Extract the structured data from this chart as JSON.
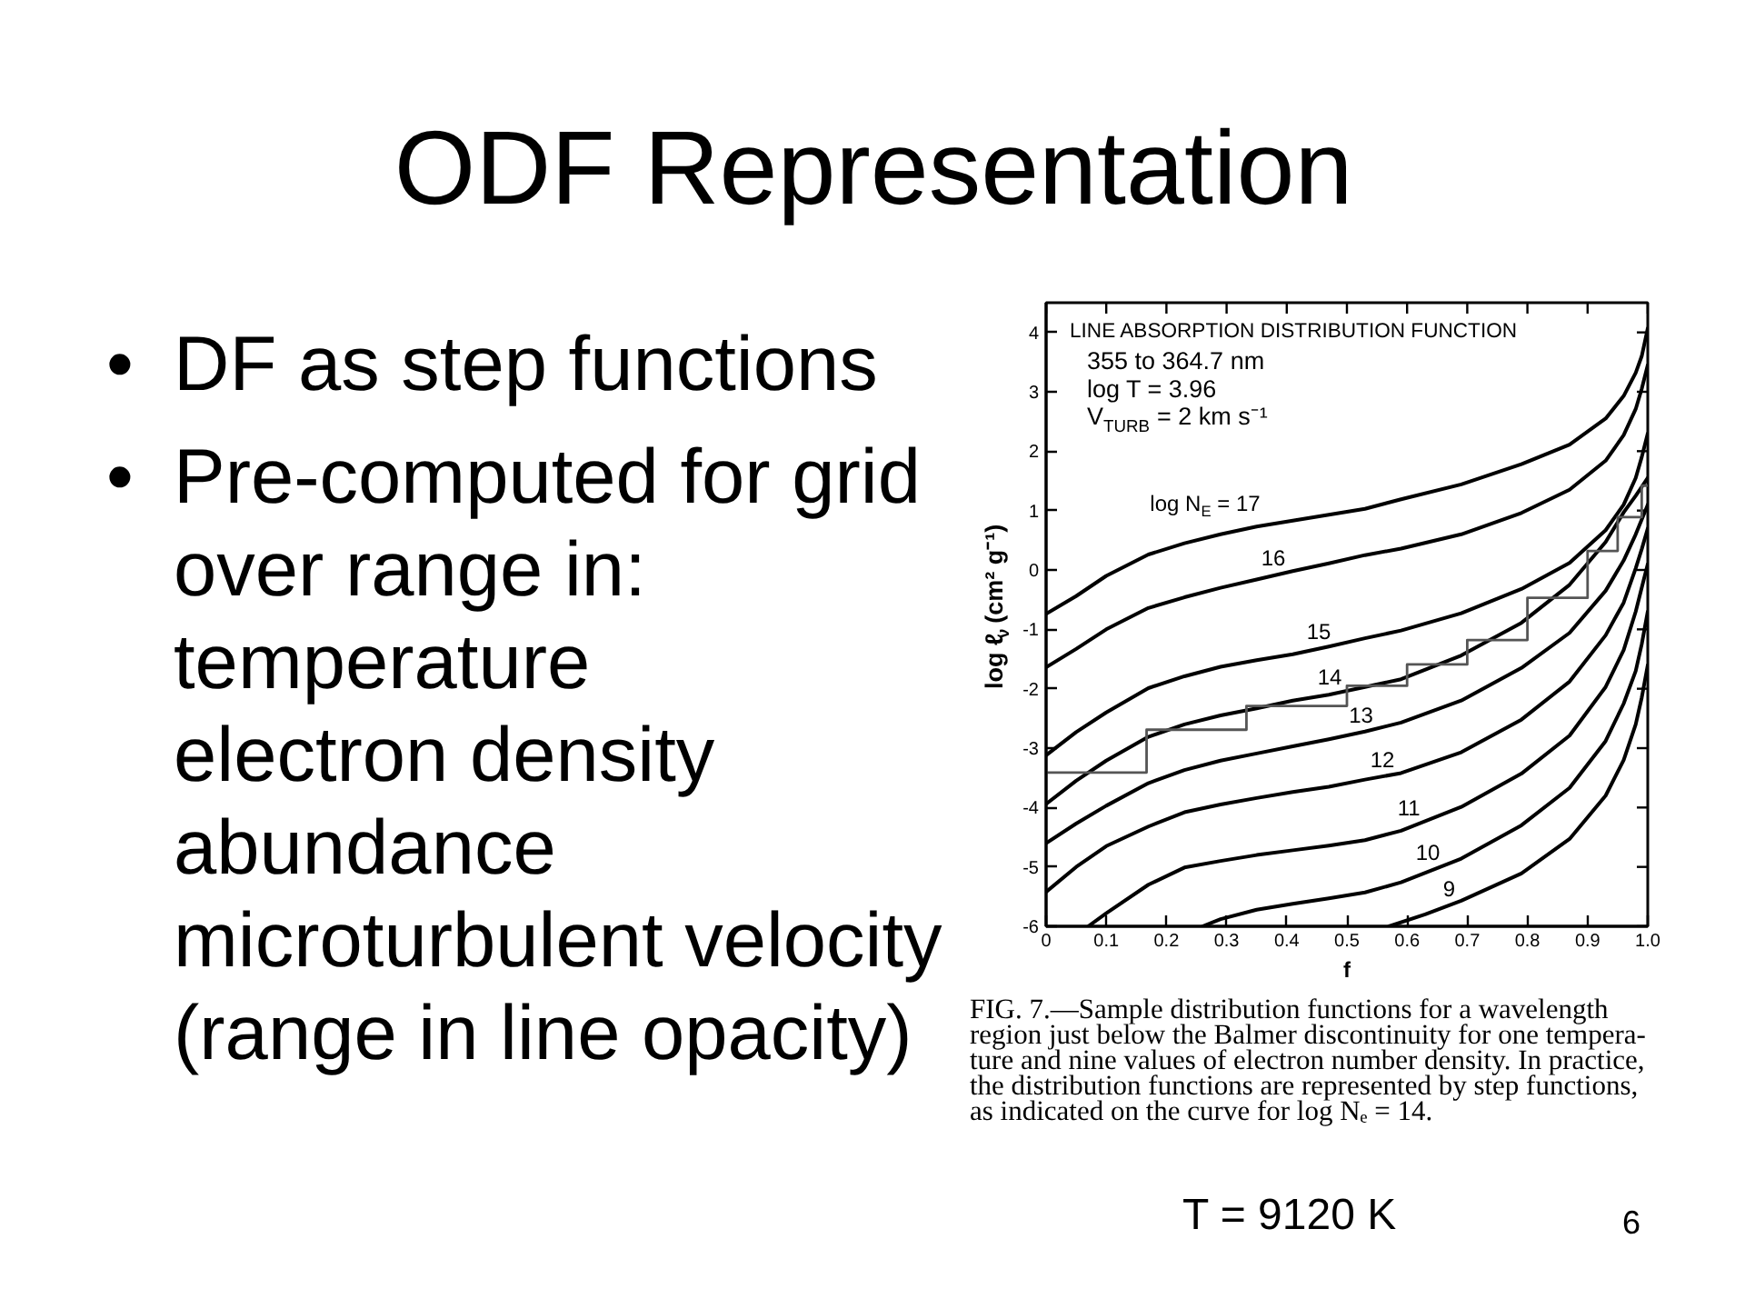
{
  "chart_data": {
    "type": "line",
    "title": "ODF Representation",
    "subtitle": "LINE ABSORPTION DISTRIBUTION FUNCTION",
    "xlabel": "f",
    "ylabel": "log ℓ$_{ν}$ (cm² g⁻¹)",
    "xlim": [
      0,
      1
    ],
    "ylim": [
      -6,
      4.5
    ],
    "xticks": [
      0,
      0.1,
      0.2,
      0.3,
      0.4,
      0.5,
      0.6,
      0.7,
      0.8,
      0.9,
      {
        "value": 1,
        "label": "1.0"
      }
    ],
    "yticks": [
      -6,
      -5,
      -4,
      -3,
      -2,
      -1,
      0,
      1,
      2,
      3,
      4
    ],
    "series": [
      {
        "name": "log N$_{E}$ = 17",
        "color": "#000000",
        "x": [
          0,
          0.05,
          0.1,
          0.17,
          0.23,
          0.29,
          0.35,
          0.41,
          0.47,
          0.53,
          0.59,
          0.69,
          0.79,
          0.87,
          0.93,
          0.96,
          0.98,
          0.99,
          1.0
        ],
        "values": [
          -0.74,
          -0.44,
          -0.1,
          0.26,
          0.45,
          0.6,
          0.73,
          0.83,
          0.93,
          1.03,
          1.19,
          1.44,
          1.78,
          2.11,
          2.55,
          2.93,
          3.32,
          3.6,
          4.07
        ]
      },
      {
        "name": "16",
        "color": "#000000",
        "x": [
          0,
          0.05,
          0.1,
          0.17,
          0.23,
          0.29,
          0.35,
          0.41,
          0.47,
          0.53,
          0.59,
          0.69,
          0.79,
          0.87,
          0.93,
          0.96,
          0.98,
          0.99,
          1.0
        ],
        "values": [
          -1.64,
          -1.33,
          -1.0,
          -0.64,
          -0.46,
          -0.3,
          -0.16,
          -0.02,
          0.11,
          0.25,
          0.36,
          0.6,
          0.96,
          1.35,
          1.84,
          2.27,
          2.71,
          3.05,
          3.45
        ]
      },
      {
        "name": "15",
        "color": "#000000",
        "x": [
          0,
          0.05,
          0.1,
          0.17,
          0.23,
          0.29,
          0.35,
          0.41,
          0.47,
          0.53,
          0.59,
          0.69,
          0.79,
          0.87,
          0.93,
          0.96,
          0.98,
          0.99,
          1.0
        ],
        "values": [
          -3.12,
          -2.73,
          -2.4,
          -1.99,
          -1.79,
          -1.63,
          -1.52,
          -1.42,
          -1.29,
          -1.15,
          -1.02,
          -0.73,
          -0.32,
          0.12,
          0.67,
          1.1,
          1.55,
          1.9,
          2.3
        ]
      },
      {
        "name": "14",
        "color": "#000000",
        "x": [
          0,
          0.05,
          0.1,
          0.17,
          0.23,
          0.29,
          0.35,
          0.41,
          0.47,
          0.53,
          0.59,
          0.69,
          0.79,
          0.87,
          0.93,
          0.96,
          0.98,
          0.99,
          1.0
        ],
        "values": [
          -3.94,
          -3.55,
          -3.21,
          -2.81,
          -2.6,
          -2.45,
          -2.33,
          -2.2,
          -2.1,
          -1.97,
          -1.84,
          -1.44,
          -0.89,
          -0.25,
          0.47,
          0.97,
          1.25,
          1.4,
          1.55
        ]
      },
      {
        "name": "13",
        "color": "#000000",
        "x": [
          0,
          0.05,
          0.1,
          0.17,
          0.23,
          0.29,
          0.35,
          0.41,
          0.47,
          0.53,
          0.59,
          0.69,
          0.79,
          0.87,
          0.93,
          0.96,
          0.98,
          0.99,
          1.0
        ],
        "values": [
          -4.6,
          -4.27,
          -3.97,
          -3.59,
          -3.37,
          -3.21,
          -3.09,
          -2.97,
          -2.85,
          -2.72,
          -2.57,
          -2.2,
          -1.65,
          -1.06,
          -0.35,
          0.16,
          0.6,
          0.85,
          1.1
        ]
      },
      {
        "name": "12",
        "color": "#000000",
        "x": [
          0,
          0.05,
          0.1,
          0.17,
          0.23,
          0.29,
          0.35,
          0.41,
          0.47,
          0.53,
          0.59,
          0.69,
          0.79,
          0.87,
          0.93,
          0.96,
          0.98,
          0.99,
          1.0
        ],
        "values": [
          -5.42,
          -5.0,
          -4.65,
          -4.32,
          -4.08,
          -3.95,
          -3.84,
          -3.74,
          -3.65,
          -3.53,
          -3.42,
          -3.07,
          -2.52,
          -1.88,
          -1.1,
          -0.55,
          0.03,
          0.35,
          0.7
        ]
      },
      {
        "name": "11",
        "color": "#000000",
        "x": [
          0.07,
          0.1,
          0.17,
          0.23,
          0.29,
          0.35,
          0.41,
          0.47,
          0.53,
          0.59,
          0.69,
          0.79,
          0.87,
          0.93,
          0.96,
          0.98,
          0.99,
          1.0
        ],
        "values": [
          -6,
          -5.78,
          -5.3,
          -5.01,
          -4.9,
          -4.8,
          -4.72,
          -4.64,
          -4.55,
          -4.39,
          -3.99,
          -3.43,
          -2.79,
          -1.97,
          -1.35,
          -0.7,
          -0.3,
          0.1
        ]
      },
      {
        "name": "10",
        "color": "#000000",
        "x": [
          0.26,
          0.29,
          0.35,
          0.41,
          0.47,
          0.53,
          0.59,
          0.69,
          0.79,
          0.87,
          0.93,
          0.96,
          0.98,
          0.99,
          1.0
        ],
        "values": [
          -6,
          -5.88,
          -5.72,
          -5.62,
          -5.53,
          -5.43,
          -5.26,
          -4.86,
          -4.3,
          -3.67,
          -2.88,
          -2.25,
          -1.7,
          -1.25,
          -0.7
        ]
      },
      {
        "name": "9",
        "color": "#000000",
        "x": [
          0.57,
          0.63,
          0.69,
          0.79,
          0.87,
          0.93,
          0.96,
          0.98,
          0.99,
          1.0
        ],
        "values": [
          -6,
          -5.8,
          -5.57,
          -5.11,
          -4.53,
          -3.8,
          -3.2,
          -2.6,
          -2.15,
          -1.6
        ]
      },
      {
        "type": "step",
        "color": "#555555",
        "x": [
          0,
          0.167,
          0.333,
          0.5,
          0.6,
          0.7,
          0.8,
          0.9,
          0.95,
          0.99,
          1.0
        ],
        "values": [
          -3.41,
          -2.69,
          -2.29,
          -1.95,
          -1.59,
          -1.18,
          -0.47,
          0.32,
          0.89,
          1.42,
          1.42
        ]
      }
    ],
    "annotations": [
      "• DF as step functions",
      "• Pre-computed for grid\nover range in:\ntemperature\nelectron density\nabundance\nmicroturbulent velocity\n(range in line opacity)",
      "355 to 364.7 nm",
      "log T = 3.96",
      "V$_{TURB}$ = 2 km s⁻¹",
      "FIG. 7.—Sample distribution functions for a wavelength\nregion just below the Balmer discontinuity for one tempera-\nture and nine values of electron number density. In practice,\nthe distribution functions are represented by step functions,\nas indicated on the curve for log Nₑ = 14.",
      "T = 9120 K",
      "6"
    ]
  }
}
